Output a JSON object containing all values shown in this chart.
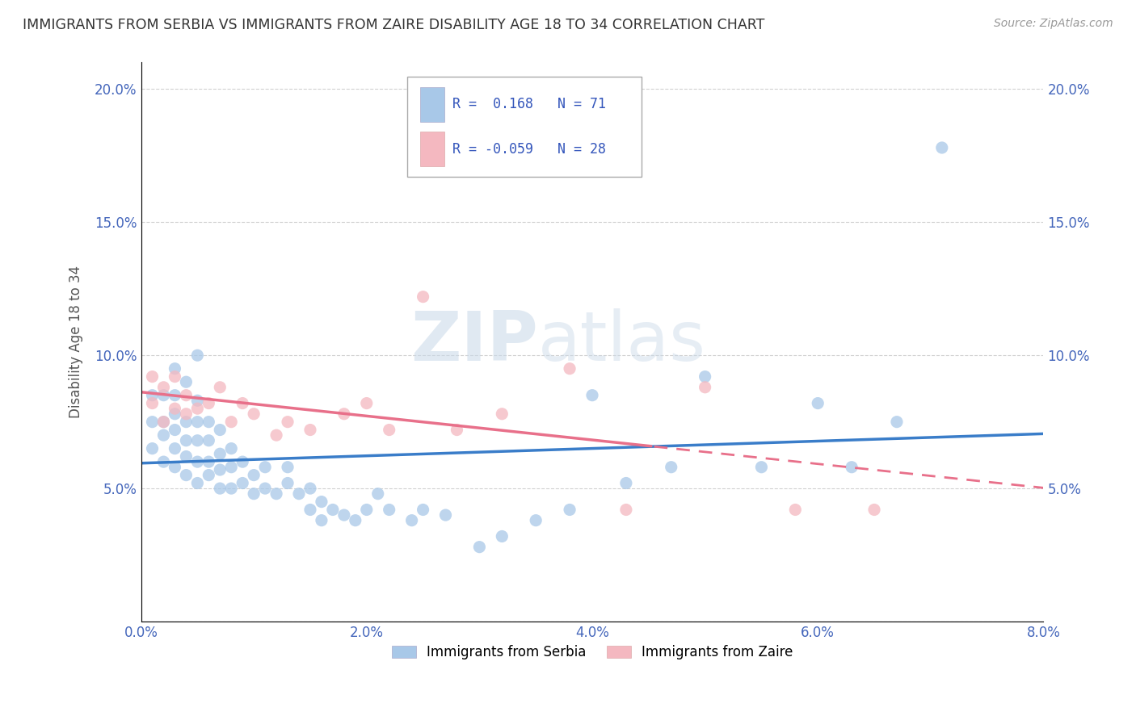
{
  "title": "IMMIGRANTS FROM SERBIA VS IMMIGRANTS FROM ZAIRE DISABILITY AGE 18 TO 34 CORRELATION CHART",
  "source": "Source: ZipAtlas.com",
  "xlabel": "",
  "ylabel": "Disability Age 18 to 34",
  "xlim": [
    0.0,
    0.08
  ],
  "ylim": [
    0.0,
    0.21
  ],
  "xticks": [
    0.0,
    0.02,
    0.04,
    0.06,
    0.08
  ],
  "xtick_labels": [
    "0.0%",
    "2.0%",
    "4.0%",
    "6.0%",
    "8.0%"
  ],
  "ytick_labels": [
    "",
    "5.0%",
    "10.0%",
    "15.0%",
    "20.0%"
  ],
  "yticks": [
    0.0,
    0.05,
    0.1,
    0.15,
    0.2
  ],
  "serbia_color": "#a8c8e8",
  "zaire_color": "#f4b8c0",
  "serbia_line_color": "#3a7dc9",
  "zaire_line_color": "#e8708a",
  "serbia_R": 0.168,
  "serbia_N": 71,
  "zaire_R": -0.059,
  "zaire_N": 28,
  "serbia_scatter_x": [
    0.001,
    0.001,
    0.001,
    0.002,
    0.002,
    0.002,
    0.002,
    0.003,
    0.003,
    0.003,
    0.003,
    0.003,
    0.003,
    0.004,
    0.004,
    0.004,
    0.004,
    0.004,
    0.005,
    0.005,
    0.005,
    0.005,
    0.005,
    0.005,
    0.006,
    0.006,
    0.006,
    0.006,
    0.007,
    0.007,
    0.007,
    0.007,
    0.008,
    0.008,
    0.008,
    0.009,
    0.009,
    0.01,
    0.01,
    0.011,
    0.011,
    0.012,
    0.013,
    0.013,
    0.014,
    0.015,
    0.015,
    0.016,
    0.016,
    0.017,
    0.018,
    0.019,
    0.02,
    0.021,
    0.022,
    0.024,
    0.025,
    0.027,
    0.03,
    0.032,
    0.035,
    0.038,
    0.04,
    0.043,
    0.047,
    0.05,
    0.055,
    0.06,
    0.063,
    0.067,
    0.071
  ],
  "serbia_scatter_y": [
    0.065,
    0.075,
    0.085,
    0.06,
    0.07,
    0.075,
    0.085,
    0.058,
    0.065,
    0.072,
    0.078,
    0.085,
    0.095,
    0.055,
    0.062,
    0.068,
    0.075,
    0.09,
    0.052,
    0.06,
    0.068,
    0.075,
    0.083,
    0.1,
    0.055,
    0.06,
    0.068,
    0.075,
    0.05,
    0.057,
    0.063,
    0.072,
    0.05,
    0.058,
    0.065,
    0.052,
    0.06,
    0.048,
    0.055,
    0.05,
    0.058,
    0.048,
    0.052,
    0.058,
    0.048,
    0.042,
    0.05,
    0.038,
    0.045,
    0.042,
    0.04,
    0.038,
    0.042,
    0.048,
    0.042,
    0.038,
    0.042,
    0.04,
    0.028,
    0.032,
    0.038,
    0.042,
    0.085,
    0.052,
    0.058,
    0.092,
    0.058,
    0.082,
    0.058,
    0.075,
    0.178
  ],
  "zaire_scatter_x": [
    0.001,
    0.001,
    0.002,
    0.002,
    0.003,
    0.003,
    0.004,
    0.004,
    0.005,
    0.006,
    0.007,
    0.008,
    0.009,
    0.01,
    0.012,
    0.013,
    0.015,
    0.018,
    0.02,
    0.022,
    0.025,
    0.028,
    0.032,
    0.038,
    0.043,
    0.05,
    0.058,
    0.065
  ],
  "zaire_scatter_y": [
    0.082,
    0.092,
    0.075,
    0.088,
    0.08,
    0.092,
    0.085,
    0.078,
    0.08,
    0.082,
    0.088,
    0.075,
    0.082,
    0.078,
    0.07,
    0.075,
    0.072,
    0.078,
    0.082,
    0.072,
    0.122,
    0.072,
    0.078,
    0.095,
    0.042,
    0.088,
    0.042,
    0.042
  ],
  "watermark_zip": "ZIP",
  "watermark_atlas": "atlas",
  "legend_label_serbia": "Immigrants from Serbia",
  "legend_label_zaire": "Immigrants from Zaire",
  "background_color": "#ffffff",
  "grid_color": "#cccccc"
}
